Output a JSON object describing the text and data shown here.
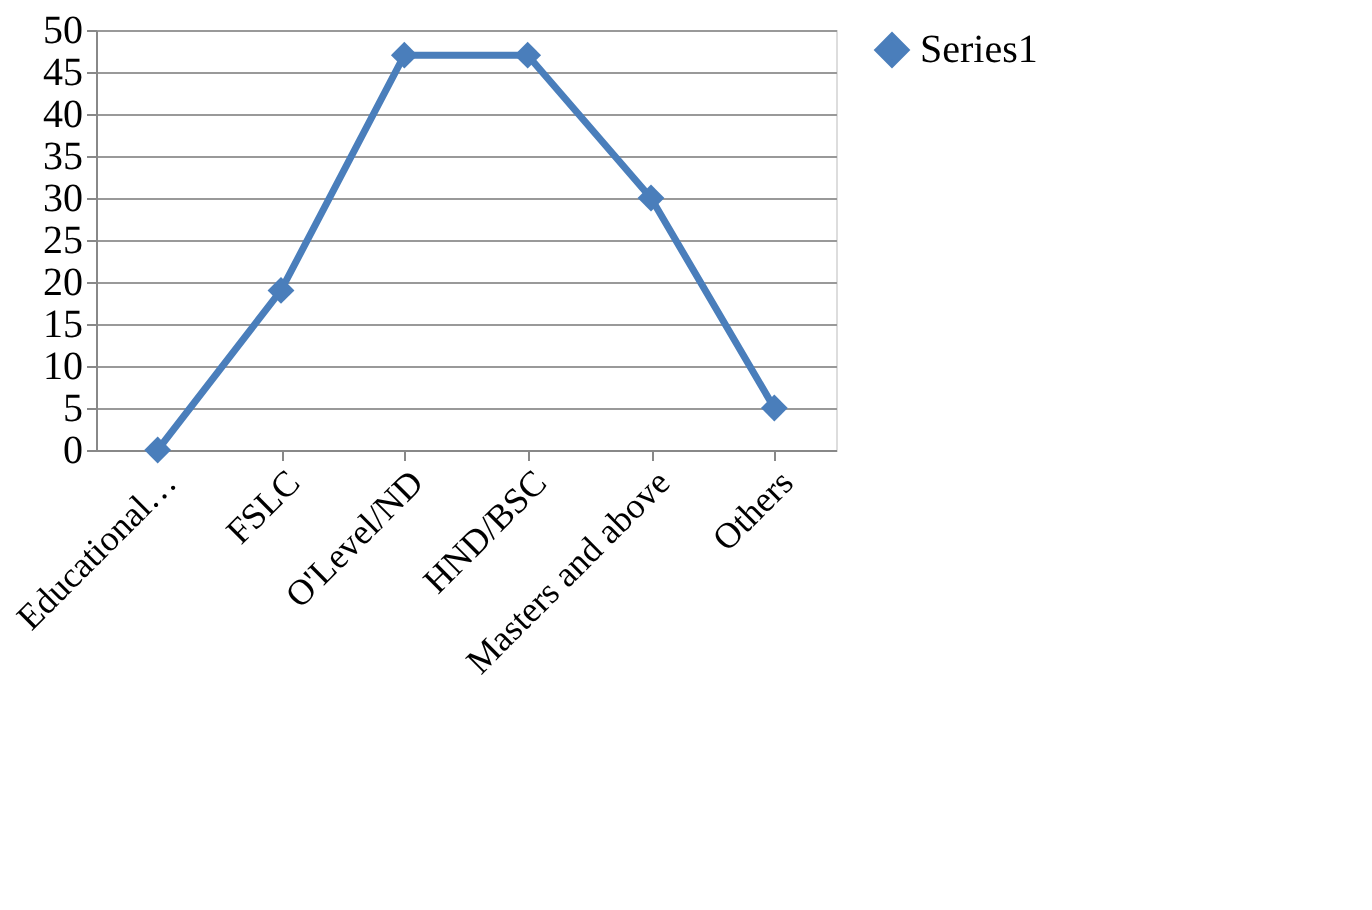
{
  "chart_data": {
    "type": "line",
    "categories": [
      "Educational…",
      "FSLC",
      "O'Level/ND",
      "HND/BSC",
      "Masters and above",
      "Others"
    ],
    "series": [
      {
        "name": "Series1",
        "color": "#4a7ebb",
        "values": [
          0,
          19,
          47,
          47,
          30,
          5
        ]
      }
    ],
    "ylim": [
      0,
      50
    ],
    "yticks": [
      0,
      5,
      10,
      15,
      20,
      25,
      30,
      35,
      40,
      45,
      50
    ],
    "grid": "y",
    "legend": "right",
    "marker": "diamond",
    "line_style": "solid"
  }
}
